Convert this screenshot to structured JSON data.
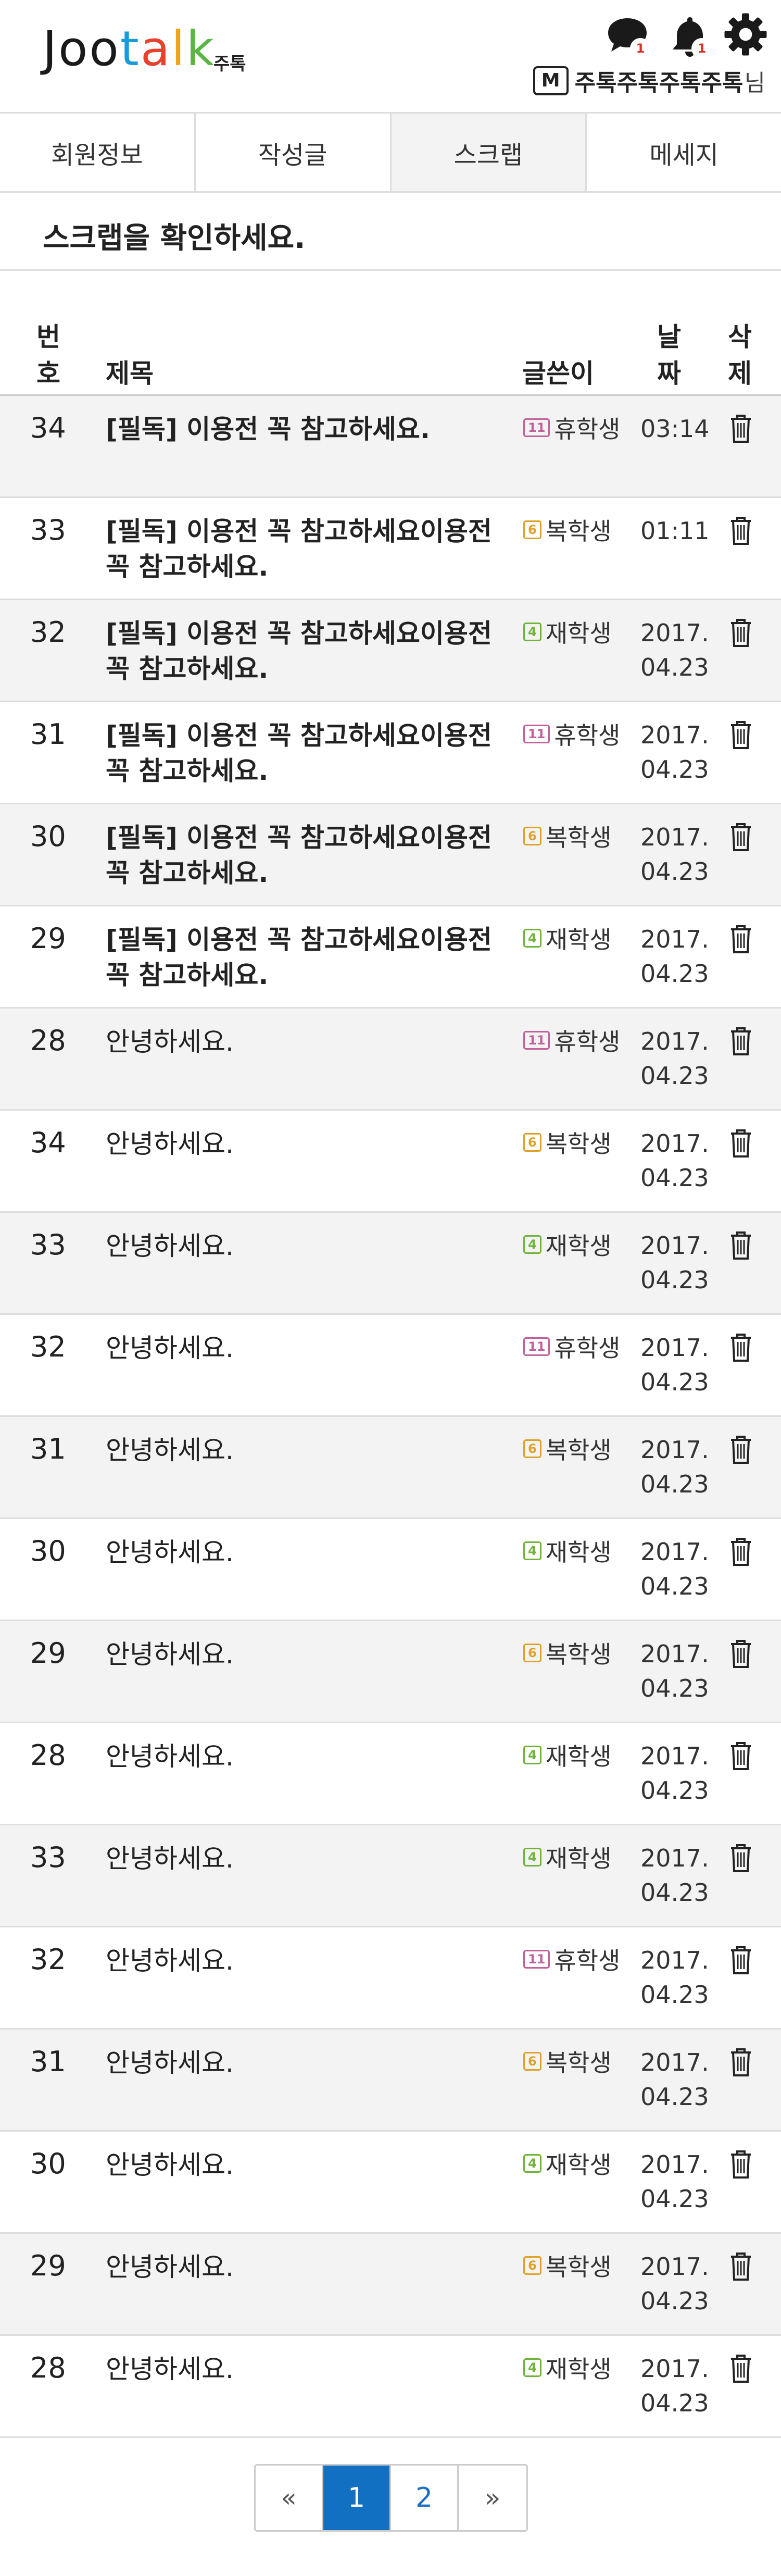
{
  "header": {
    "logo_letters": [
      {
        "ch": "J",
        "color": "#1a1a1a"
      },
      {
        "ch": "o",
        "color": "#1a1a1a"
      },
      {
        "ch": "o",
        "color": "#1a1a1a"
      },
      {
        "ch": "t",
        "color": "#1a9bd8"
      },
      {
        "ch": "a",
        "color": "#e8412c"
      },
      {
        "ch": "l",
        "color": "#f2a21b"
      },
      {
        "ch": "k",
        "color": "#5bb544"
      }
    ],
    "logo_sub": "주톡",
    "chat_badge": "1",
    "bell_badge": "1",
    "member_badge": "M",
    "user_name": "주톡주톡주톡주톡",
    "user_suffix": "님"
  },
  "tabs": [
    {
      "label": "회원정보",
      "active": false
    },
    {
      "label": "작성글",
      "active": false
    },
    {
      "label": "스크랩",
      "active": true
    },
    {
      "label": "메세지",
      "active": false
    }
  ],
  "notice": "스크랩을 확인하세요.",
  "table": {
    "headers": {
      "num_line1": "번",
      "num_line2": "호",
      "title": "제목",
      "writer": "글쓴이",
      "date_line1": "날",
      "date_line2": "짜",
      "delete_line1": "삭",
      "delete_line2": "제"
    },
    "rows": [
      {
        "num": "34",
        "title": "[필독] 이용전 꼭 참고하세요.",
        "bold": true,
        "level": "11",
        "level_color": "#c2609a",
        "status": "휴학생",
        "date_line1": "03:14",
        "date_line2": ""
      },
      {
        "num": "33",
        "title": "[필독] 이용전 꼭 참고하세요이용전 꼭 참고하세요.",
        "bold": true,
        "level": "6",
        "level_color": "#e0a12b",
        "status": "복학생",
        "date_line1": "01:11",
        "date_line2": ""
      },
      {
        "num": "32",
        "title": "[필독] 이용전 꼭 참고하세요이용전 꼭 참고하세요.",
        "bold": true,
        "level": "4",
        "level_color": "#6fb43a",
        "status": "재학생",
        "date_line1": "2017.",
        "date_line2": "04.23"
      },
      {
        "num": "31",
        "title": "[필독] 이용전 꼭 참고하세요이용전 꼭 참고하세요.",
        "bold": true,
        "level": "11",
        "level_color": "#c2609a",
        "status": "휴학생",
        "date_line1": "2017.",
        "date_line2": "04.23"
      },
      {
        "num": "30",
        "title": "[필독] 이용전 꼭 참고하세요이용전 꼭 참고하세요.",
        "bold": true,
        "level": "6",
        "level_color": "#e0a12b",
        "status": "복학생",
        "date_line1": "2017.",
        "date_line2": "04.23"
      },
      {
        "num": "29",
        "title": "[필독] 이용전 꼭 참고하세요이용전 꼭 참고하세요.",
        "bold": true,
        "level": "4",
        "level_color": "#6fb43a",
        "status": "재학생",
        "date_line1": "2017.",
        "date_line2": "04.23"
      },
      {
        "num": "28",
        "title": "안녕하세요.",
        "bold": false,
        "level": "11",
        "level_color": "#c2609a",
        "status": "휴학생",
        "date_line1": "2017.",
        "date_line2": "04.23"
      },
      {
        "num": "34",
        "title": "안녕하세요.",
        "bold": false,
        "level": "6",
        "level_color": "#e0a12b",
        "status": "복학생",
        "date_line1": "2017.",
        "date_line2": "04.23"
      },
      {
        "num": "33",
        "title": "안녕하세요.",
        "bold": false,
        "level": "4",
        "level_color": "#6fb43a",
        "status": "재학생",
        "date_line1": "2017.",
        "date_line2": "04.23"
      },
      {
        "num": "32",
        "title": "안녕하세요.",
        "bold": false,
        "level": "11",
        "level_color": "#c2609a",
        "status": "휴학생",
        "date_line1": "2017.",
        "date_line2": "04.23"
      },
      {
        "num": "31",
        "title": "안녕하세요.",
        "bold": false,
        "level": "6",
        "level_color": "#e0a12b",
        "status": "복학생",
        "date_line1": "2017.",
        "date_line2": "04.23"
      },
      {
        "num": "30",
        "title": "안녕하세요.",
        "bold": false,
        "level": "4",
        "level_color": "#6fb43a",
        "status": "재학생",
        "date_line1": "2017.",
        "date_line2": "04.23"
      },
      {
        "num": "29",
        "title": "안녕하세요.",
        "bold": false,
        "level": "6",
        "level_color": "#e0a12b",
        "status": "복학생",
        "date_line1": "2017.",
        "date_line2": "04.23"
      },
      {
        "num": "28",
        "title": "안녕하세요.",
        "bold": false,
        "level": "4",
        "level_color": "#6fb43a",
        "status": "재학생",
        "date_line1": "2017.",
        "date_line2": "04.23"
      },
      {
        "num": "33",
        "title": "안녕하세요.",
        "bold": false,
        "level": "4",
        "level_color": "#6fb43a",
        "status": "재학생",
        "date_line1": "2017.",
        "date_line2": "04.23"
      },
      {
        "num": "32",
        "title": "안녕하세요.",
        "bold": false,
        "level": "11",
        "level_color": "#c2609a",
        "status": "휴학생",
        "date_line1": "2017.",
        "date_line2": "04.23"
      },
      {
        "num": "31",
        "title": "안녕하세요.",
        "bold": false,
        "level": "6",
        "level_color": "#e0a12b",
        "status": "복학생",
        "date_line1": "2017.",
        "date_line2": "04.23"
      },
      {
        "num": "30",
        "title": "안녕하세요.",
        "bold": false,
        "level": "4",
        "level_color": "#6fb43a",
        "status": "재학생",
        "date_line1": "2017.",
        "date_line2": "04.23"
      },
      {
        "num": "29",
        "title": "안녕하세요.",
        "bold": false,
        "level": "6",
        "level_color": "#e0a12b",
        "status": "복학생",
        "date_line1": "2017.",
        "date_line2": "04.23"
      },
      {
        "num": "28",
        "title": "안녕하세요.",
        "bold": false,
        "level": "4",
        "level_color": "#6fb43a",
        "status": "재학생",
        "date_line1": "2017.",
        "date_line2": "04.23"
      }
    ]
  },
  "pagination": {
    "first": "«",
    "pages": [
      {
        "label": "1",
        "active": true
      },
      {
        "label": "2",
        "active": false
      }
    ],
    "next": "»"
  },
  "icons": {
    "chat": "chat-bubble-icon",
    "bell": "bell-icon",
    "settings": "gear-icon",
    "delete": "trash-icon"
  }
}
